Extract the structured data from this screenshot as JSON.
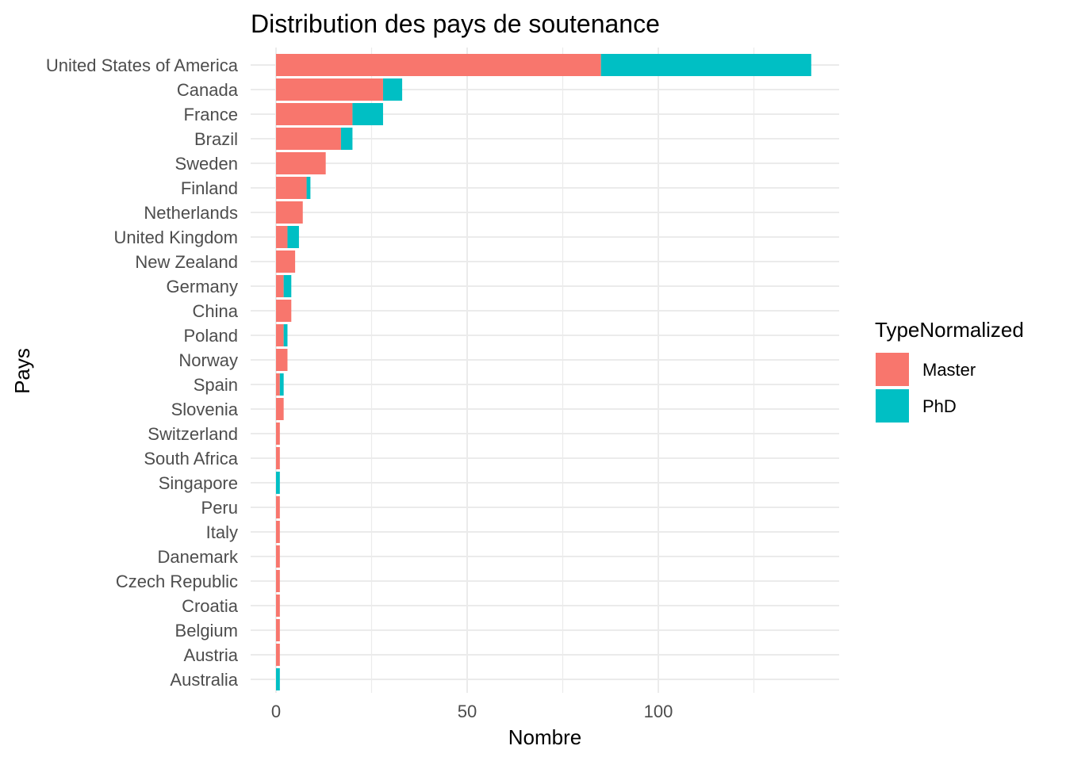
{
  "chart_data": {
    "type": "bar",
    "orientation": "horizontal",
    "stacked": true,
    "title": "Distribution des pays de soutenance",
    "xlabel": "Nombre",
    "ylabel": "Pays",
    "xlim": [
      0,
      140
    ],
    "xticks": [
      0,
      50,
      100
    ],
    "grid": true,
    "categories": [
      "United States of America",
      "Canada",
      "France",
      "Brazil",
      "Sweden",
      "Finland",
      "Netherlands",
      "United Kingdom",
      "New Zealand",
      "Germany",
      "China",
      "Poland",
      "Norway",
      "Spain",
      "Slovenia",
      "Switzerland",
      "South Africa",
      "Singapore",
      "Peru",
      "Italy",
      "Danemark",
      "Czech Republic",
      "Croatia",
      "Belgium",
      "Austria",
      "Australia"
    ],
    "series": [
      {
        "name": "Master",
        "color": "#F8766D",
        "values": [
          85,
          28,
          20,
          17,
          13,
          8,
          7,
          3,
          5,
          2,
          4,
          2,
          3,
          1,
          2,
          1,
          1,
          0,
          1,
          1,
          1,
          1,
          1,
          1,
          1,
          0
        ]
      },
      {
        "name": "PhD",
        "color": "#00BFC4",
        "values": [
          55,
          5,
          8,
          3,
          0,
          1,
          0,
          3,
          0,
          2,
          0,
          1,
          0,
          1,
          0,
          0,
          0,
          1,
          0,
          0,
          0,
          0,
          0,
          0,
          0,
          1
        ]
      }
    ],
    "legend": {
      "title": "TypeNormalized",
      "position": "right"
    }
  }
}
